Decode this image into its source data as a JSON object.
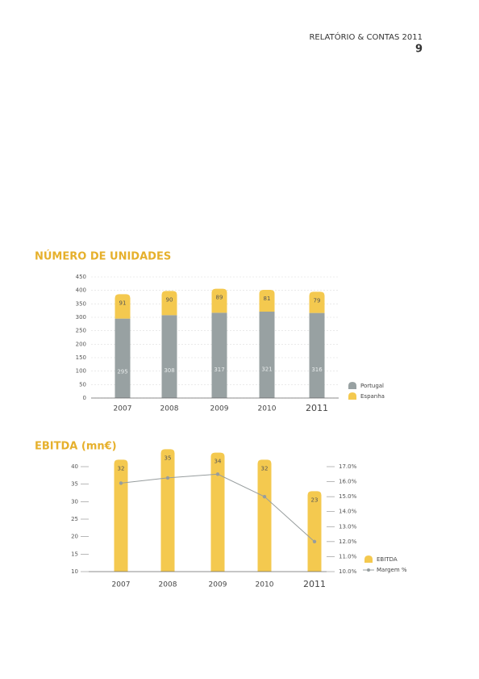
{
  "header": {
    "title": "RELATÓRIO & CONTAS 2011",
    "page": "9"
  },
  "chart_data": [
    {
      "type": "bar",
      "stacked": true,
      "title": "NÚMERO DE UNIDADES",
      "categories": [
        "2007",
        "2008",
        "2009",
        "2010",
        "2011"
      ],
      "series": [
        {
          "name": "Portugal",
          "color": "#98a1a2",
          "values": [
            295,
            308,
            317,
            321,
            316
          ]
        },
        {
          "name": "Espanha",
          "color": "#f4c94f",
          "values": [
            91,
            90,
            89,
            81,
            79
          ]
        }
      ],
      "ylim": [
        0,
        450
      ],
      "yticks": [
        0,
        50,
        100,
        150,
        200,
        250,
        300,
        350,
        400,
        450
      ],
      "grid": true,
      "legend": "bottom-right"
    },
    {
      "type": "combo",
      "title": "EBITDA (mn€)",
      "categories": [
        "2007",
        "2008",
        "2009",
        "2010",
        "2011"
      ],
      "series": [
        {
          "name": "EBITDA",
          "type": "bar",
          "color": "#f4c94f",
          "values": [
            32,
            35,
            34,
            32,
            23
          ]
        },
        {
          "name": "Margem %",
          "type": "line",
          "axis": "y2",
          "color": "#979d9e",
          "values": [
            15.9,
            16.25,
            16.5,
            15.0,
            12.0
          ]
        }
      ],
      "ylim": [
        10,
        40
      ],
      "yticks": [
        10,
        15,
        20,
        25,
        30,
        35,
        40
      ],
      "y2lim": [
        10,
        17
      ],
      "y2ticks": [
        {
          "value": 10,
          "label": "10.0%"
        },
        {
          "value": 11,
          "label": "11.0%"
        },
        {
          "value": 12,
          "label": "12.0%"
        },
        {
          "value": 13,
          "label": "13.0%"
        },
        {
          "value": 14,
          "label": "14.0%"
        },
        {
          "value": 15,
          "label": "15.0%"
        },
        {
          "value": 16,
          "label": "16.0%"
        },
        {
          "value": 17,
          "label": "17.0%"
        }
      ],
      "grid": false,
      "legend": "bottom-right"
    }
  ]
}
